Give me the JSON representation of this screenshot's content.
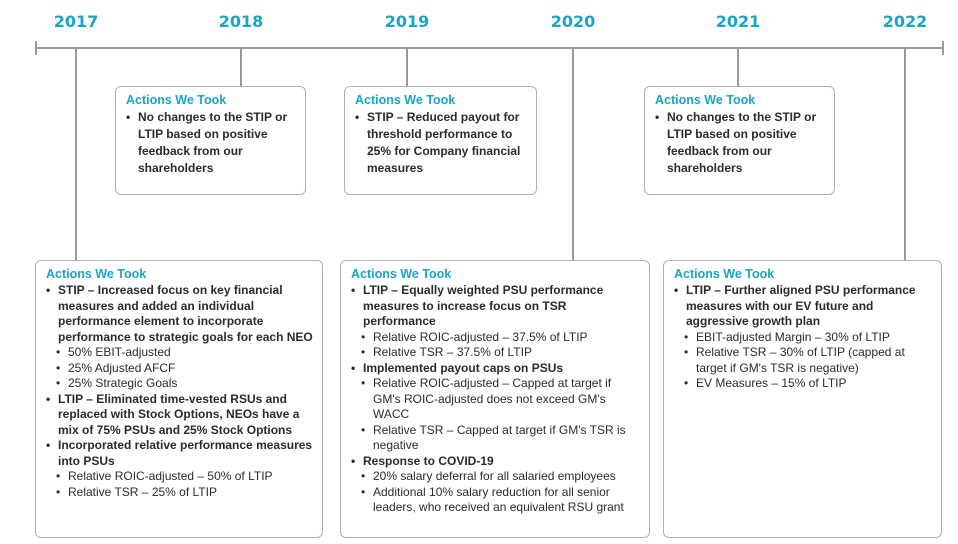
{
  "years": [
    "2017",
    "2018",
    "2019",
    "2020",
    "2021",
    "2022"
  ],
  "boxes": [
    {
      "title": "Actions We Took",
      "items": [
        {
          "text": "No changes to the STIP or LTIP based on positive feedback from our shareholders",
          "level": 0
        }
      ]
    },
    {
      "title": "Actions We Took",
      "items": [
        {
          "text": "STIP – Reduced payout for threshold performance to 25% for Company financial measures",
          "level": 0
        }
      ]
    },
    {
      "title": "Actions We Took",
      "items": [
        {
          "text": "No changes to the STIP or LTIP based on positive feedback from our shareholders",
          "level": 0
        }
      ]
    },
    {
      "title": "Actions We Took",
      "items": [
        {
          "text": "STIP – Increased focus on key financial measures and added an individual performance element to incorporate performance to strategic goals for each NEO",
          "level": 0
        },
        {
          "text": "50% EBIT-adjusted",
          "level": 1
        },
        {
          "text": "25% Adjusted AFCF",
          "level": 1
        },
        {
          "text": "25% Strategic Goals",
          "level": 1
        },
        {
          "text": "LTIP – Eliminated time-vested RSUs and replaced with Stock Options, NEOs have a mix of 75% PSUs and 25% Stock Options",
          "level": 0
        },
        {
          "text": "Incorporated relative performance measures into PSUs",
          "level": 0
        },
        {
          "text": "Relative ROIC-adjusted – 50% of LTIP",
          "level": 1
        },
        {
          "text": "Relative TSR – 25% of LTIP",
          "level": 1
        }
      ]
    },
    {
      "title": "Actions We Took",
      "items": [
        {
          "text": "LTIP – Equally weighted PSU performance measures to increase focus on TSR performance",
          "level": 0
        },
        {
          "text": "Relative ROIC-adjusted – 37.5% of LTIP",
          "level": 1
        },
        {
          "text": "Relative TSR – 37.5% of LTIP",
          "level": 1
        },
        {
          "text": "Implemented payout caps on PSUs",
          "level": 0
        },
        {
          "text": "Relative ROIC-adjusted – Capped at target if GM's ROIC-adjusted does not exceed GM's WACC",
          "level": 1
        },
        {
          "text": "Relative TSR – Capped at target if GM's TSR is negative",
          "level": 1
        },
        {
          "text": "Response to COVID-19",
          "level": 0
        },
        {
          "text": "20% salary deferral for all salaried employees",
          "level": 1
        },
        {
          "text": "Additional 10% salary reduction for all senior leaders, who received an equivalent RSU grant",
          "level": 1
        }
      ]
    },
    {
      "title": "Actions We Took",
      "items": [
        {
          "text": "LTIP – Further aligned PSU performance measures with our EV future and aggressive growth plan",
          "level": 0
        },
        {
          "text": "EBIT-adjusted Margin – 30% of LTIP",
          "level": 1
        },
        {
          "text": "Relative TSR – 30% of LTIP (capped at target if GM's TSR is negative)",
          "level": 1
        },
        {
          "text": "EV Measures – 15% of LTIP",
          "level": 1
        }
      ]
    }
  ]
}
